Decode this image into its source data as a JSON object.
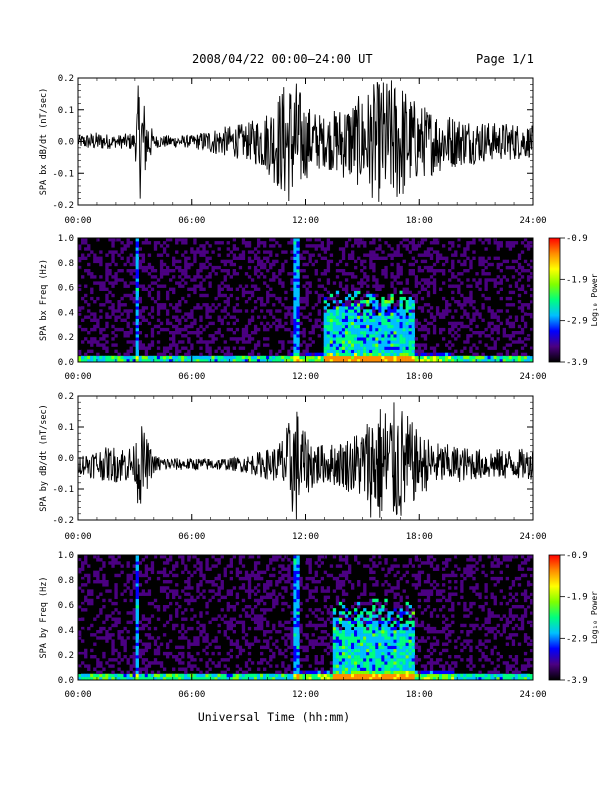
{
  "header": {
    "title": "2008/04/22  00:00–24:00 UT",
    "page": "Page 1/1"
  },
  "xaxis": {
    "label": "Universal Time (hh:mm)",
    "ticks": [
      "00:00",
      "06:00",
      "12:00",
      "18:00",
      "24:00"
    ],
    "range_hours": [
      0,
      24
    ]
  },
  "colorbar": {
    "label": "Log₁₀ Power",
    "ticks": [
      "-0.9",
      "-1.9",
      "-2.9",
      "-3.9"
    ],
    "range": [
      -3.9,
      -0.9
    ],
    "colors": [
      "#000000",
      "#4b0082",
      "#0000ff",
      "#00bfff",
      "#00ff7f",
      "#7fff00",
      "#ffff00",
      "#ff8c00",
      "#ff0000"
    ]
  },
  "chart_data": [
    {
      "type": "line",
      "ylabel": "SPA bx dB/dt (nT/sec)",
      "ylim": [
        -0.2,
        0.2
      ],
      "yticks": [
        "0.2",
        "0.1",
        "0.0",
        "-0.1",
        "-0.2"
      ],
      "x_hours": [
        0,
        1,
        2,
        3,
        3.2,
        4,
        5,
        6,
        7,
        8,
        9,
        10,
        10.5,
        11,
        11.5,
        12,
        13,
        14,
        15,
        15.5,
        16,
        16.5,
        17,
        17.5,
        18,
        19,
        20,
        21,
        22,
        23,
        24
      ],
      "amplitude": [
        0.02,
        0.03,
        0.02,
        0.03,
        0.2,
        0.02,
        0.02,
        0.02,
        0.04,
        0.05,
        0.06,
        0.1,
        0.15,
        0.2,
        0.2,
        0.12,
        0.08,
        0.12,
        0.15,
        0.18,
        0.2,
        0.2,
        0.2,
        0.15,
        0.12,
        0.1,
        0.08,
        0.07,
        0.06,
        0.06,
        0.05
      ],
      "offset": 0.0
    },
    {
      "type": "heatmap",
      "ylabel": "SPA bx Freq (Hz)",
      "ylim": [
        0.0,
        1.0
      ],
      "yticks": [
        "1.0",
        "0.8",
        "0.6",
        "0.4",
        "0.2",
        "0.0"
      ],
      "active_region": {
        "start_hour": 13,
        "end_hour": 17.8,
        "max_freq": 0.6
      }
    },
    {
      "type": "line",
      "ylabel": "SPA by dB/dt (nT/sec)",
      "ylim": [
        -0.2,
        0.2
      ],
      "yticks": [
        "0.2",
        "0.1",
        "0.0",
        "-0.1",
        "-0.2"
      ],
      "x_hours": [
        0,
        1,
        2,
        3,
        3.2,
        4,
        5,
        6,
        7,
        8,
        9,
        10,
        10.5,
        11,
        11.5,
        12,
        13,
        14,
        15,
        15.5,
        16,
        16.5,
        17,
        17.5,
        18,
        19,
        20,
        21,
        22,
        23,
        24
      ],
      "amplitude": [
        0.03,
        0.05,
        0.06,
        0.06,
        0.15,
        0.03,
        0.02,
        0.02,
        0.02,
        0.02,
        0.03,
        0.05,
        0.06,
        0.12,
        0.2,
        0.1,
        0.06,
        0.08,
        0.12,
        0.18,
        0.2,
        0.2,
        0.2,
        0.15,
        0.1,
        0.07,
        0.06,
        0.05,
        0.05,
        0.05,
        0.05
      ],
      "offset": -0.02
    },
    {
      "type": "heatmap",
      "ylabel": "SPA by Freq (Hz)",
      "ylim": [
        0.0,
        1.0
      ],
      "yticks": [
        "1.0",
        "0.8",
        "0.6",
        "0.4",
        "0.2",
        "0.0"
      ],
      "active_region": {
        "start_hour": 13.5,
        "end_hour": 17.8,
        "max_freq": 0.65
      }
    }
  ]
}
